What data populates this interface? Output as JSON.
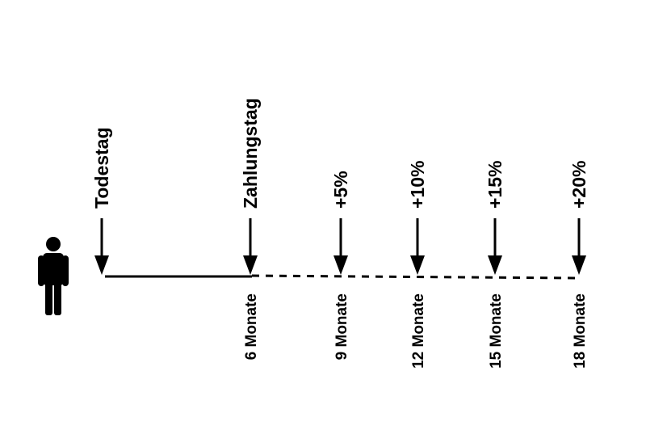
{
  "milestones": [
    {
      "label": "Todestag"
    },
    {
      "label": "Zahlungstag",
      "period": "6 Monate"
    },
    {
      "label": "+5%",
      "period": "9 Monate"
    },
    {
      "label": "+10%",
      "period": "12 Monate"
    },
    {
      "label": "+15%",
      "period": "15 Monate"
    },
    {
      "label": "+20%",
      "period": "18 Monate"
    }
  ]
}
